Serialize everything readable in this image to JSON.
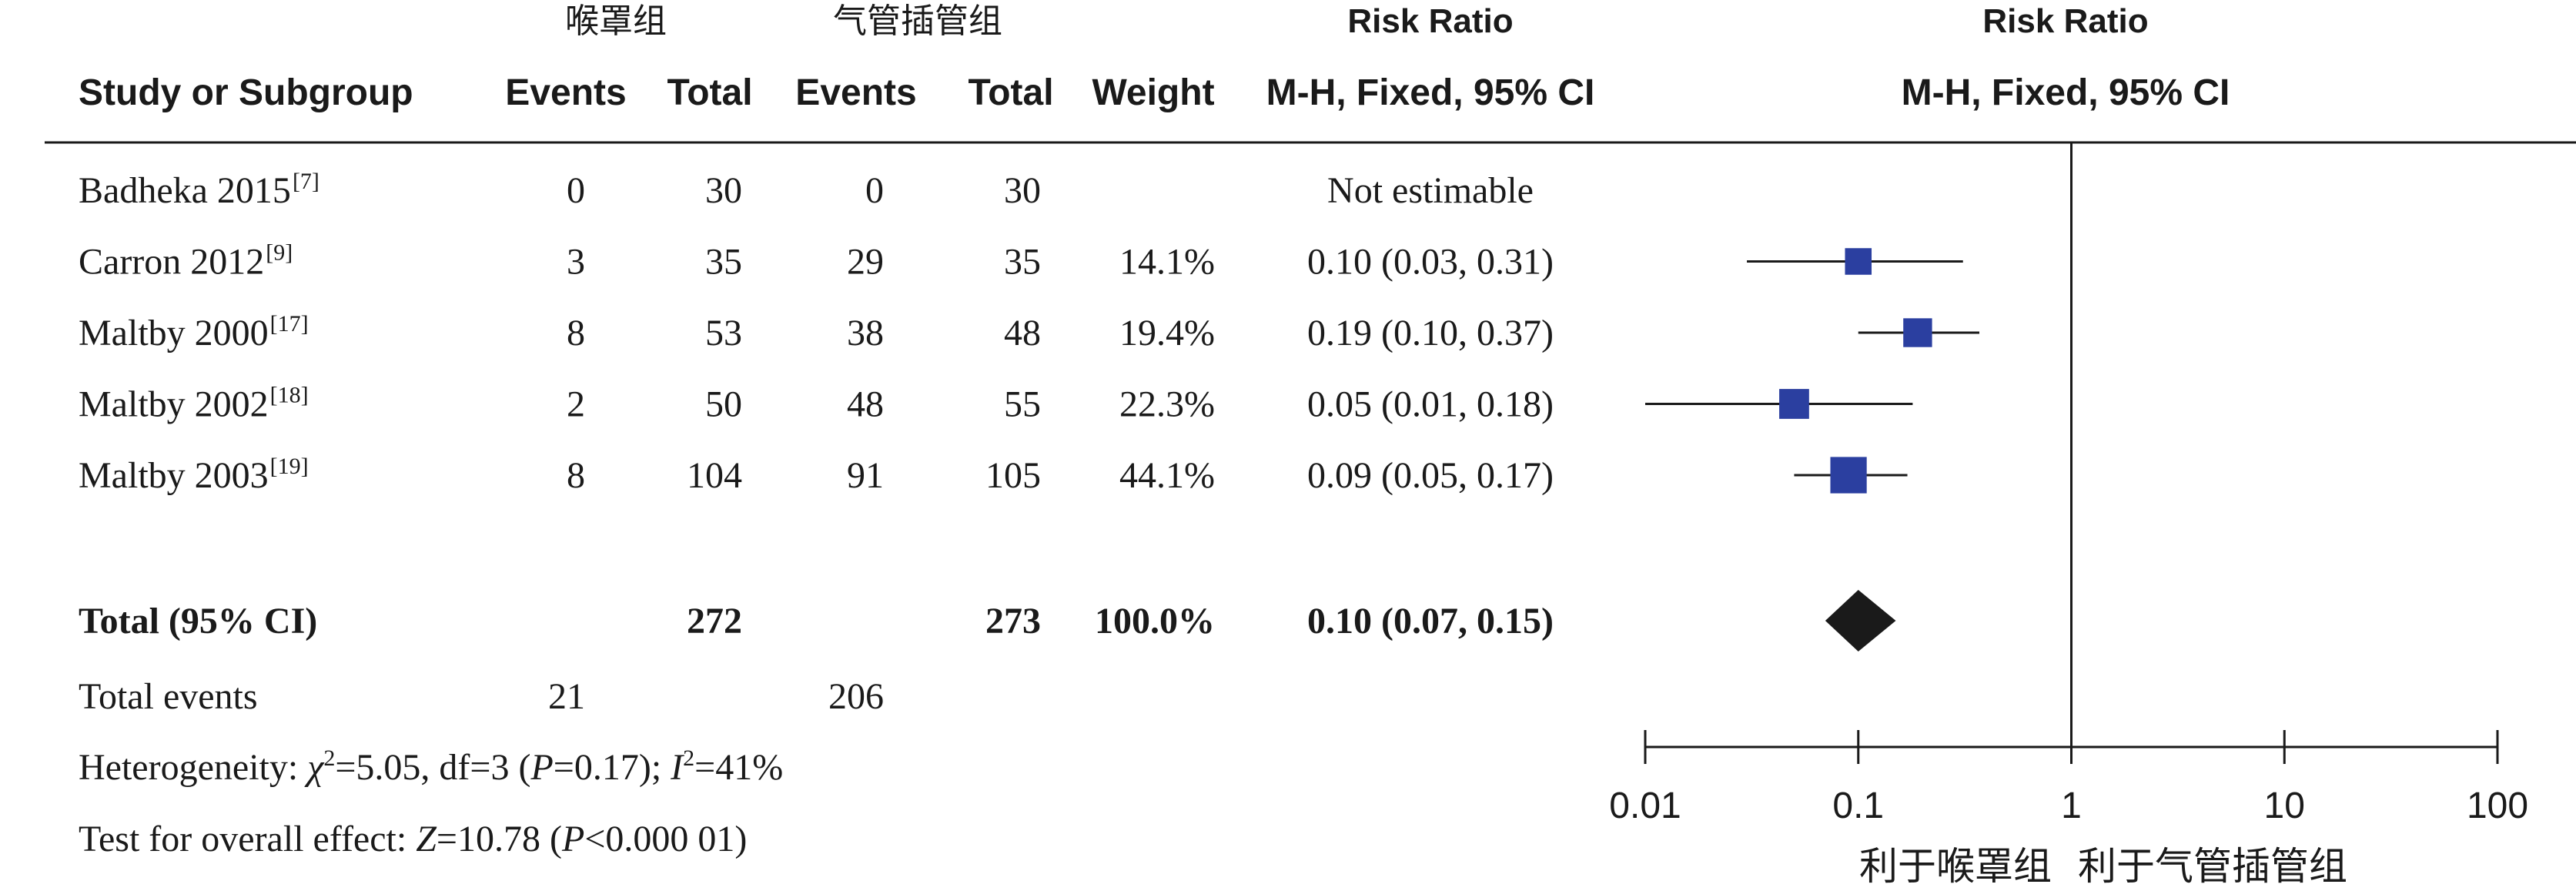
{
  "header": {
    "group_lma": "喉罩组",
    "group_eti": "气管插管组",
    "risk_ratio": "Risk Ratio",
    "study_col": "Study or Subgroup",
    "events": "Events",
    "total": "Total",
    "weight": "Weight",
    "method": "M-H, Fixed, 95% CI"
  },
  "studies": [
    {
      "name": "Badheka 2015",
      "ref": "[7]",
      "e1": "0",
      "t1": "30",
      "e2": "0",
      "t2": "30",
      "weight": "",
      "ci_text": "Not estimable",
      "rr": null,
      "lo": null,
      "hi": null,
      "w": 0
    },
    {
      "name": "Carron 2012",
      "ref": "[9]",
      "e1": "3",
      "t1": "35",
      "e2": "29",
      "t2": "35",
      "weight": "14.1%",
      "ci_text": "0.10 (0.03, 0.31)",
      "rr": 0.1,
      "lo": 0.03,
      "hi": 0.31,
      "w": 14.1
    },
    {
      "name": "Maltby 2000",
      "ref": "[17]",
      "e1": "8",
      "t1": "53",
      "e2": "38",
      "t2": "48",
      "weight": "19.4%",
      "ci_text": "0.19 (0.10, 0.37)",
      "rr": 0.19,
      "lo": 0.1,
      "hi": 0.37,
      "w": 19.4
    },
    {
      "name": "Maltby 2002",
      "ref": "[18]",
      "e1": "2",
      "t1": "50",
      "e2": "48",
      "t2": "55",
      "weight": "22.3%",
      "ci_text": "0.05 (0.01, 0.18)",
      "rr": 0.05,
      "lo": 0.01,
      "hi": 0.18,
      "w": 22.3
    },
    {
      "name": "Maltby 2003",
      "ref": "[19]",
      "e1": "8",
      "t1": "104",
      "e2": "91",
      "t2": "105",
      "weight": "44.1%",
      "ci_text": "0.09 (0.05, 0.17)",
      "rr": 0.09,
      "lo": 0.05,
      "hi": 0.17,
      "w": 44.1
    }
  ],
  "total": {
    "label": "Total (95% CI)",
    "t1": "272",
    "t2": "273",
    "weight": "100.0%",
    "ci_text": "0.10 (0.07, 0.15)",
    "rr": 0.1,
    "lo": 0.07,
    "hi": 0.15
  },
  "total_events": {
    "label": "Total events",
    "e1": "21",
    "e2": "206"
  },
  "heterogeneity": {
    "prefix": "Heterogeneity: ",
    "chi": "χ",
    "chi_sup": "2",
    "chi_val": "=5.05, df=3 (",
    "p": "P",
    "p_val": "=0.17); ",
    "i": "I",
    "i_sup": "2",
    "i_val": "=41%"
  },
  "overall": {
    "prefix": "Test for overall effect: ",
    "z": "Z",
    "z_val": "=10.78 (",
    "p": "P",
    "p_val": "<0.000 01)"
  },
  "axis": {
    "ticks": [
      0.01,
      0.1,
      1,
      10,
      100
    ],
    "tick_labels": [
      "0.01",
      "0.1",
      "1",
      "10",
      "100"
    ],
    "favours_left": "利于喉罩组",
    "favours_right": "利于气管插管组"
  },
  "chart_data": {
    "type": "forest",
    "scale": "log",
    "xlim": [
      0.01,
      100
    ],
    "reference_line": 1,
    "series": [
      {
        "name": "Carron 2012",
        "rr": 0.1,
        "ci": [
          0.03,
          0.31
        ],
        "weight": 14.1
      },
      {
        "name": "Maltby 2000",
        "rr": 0.19,
        "ci": [
          0.1,
          0.37
        ],
        "weight": 19.4
      },
      {
        "name": "Maltby 2002",
        "rr": 0.05,
        "ci": [
          0.01,
          0.18
        ],
        "weight": 22.3
      },
      {
        "name": "Maltby 2003",
        "rr": 0.09,
        "ci": [
          0.05,
          0.17
        ],
        "weight": 44.1
      }
    ],
    "pooled": {
      "rr": 0.1,
      "ci": [
        0.07,
        0.15
      ]
    },
    "colors": {
      "marker": "#2b3fa0",
      "diamond": "#1a1a1a",
      "line": "#1a1a1a"
    }
  }
}
